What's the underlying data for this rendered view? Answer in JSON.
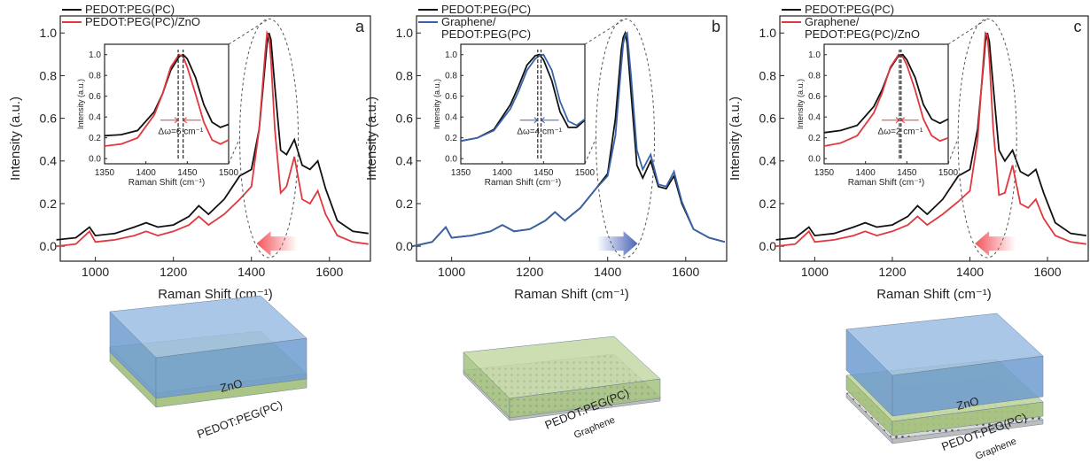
{
  "chart_data": [
    {
      "type": "line",
      "label": "a",
      "xlabel": "Raman Shift (cm⁻¹)",
      "ylabel": "Intensity (a.u.)",
      "x": [
        900,
        950,
        985,
        1000,
        1050,
        1100,
        1130,
        1160,
        1200,
        1240,
        1265,
        1290,
        1330,
        1370,
        1400,
        1420,
        1435,
        1440,
        1445,
        1450,
        1460,
        1475,
        1490,
        1510,
        1530,
        1550,
        1570,
        1590,
        1620,
        1660,
        1700
      ],
      "series": [
        {
          "name": "PEDOT:PEG(PC)",
          "color": "#111111",
          "values": [
            0.03,
            0.04,
            0.09,
            0.05,
            0.06,
            0.09,
            0.11,
            0.09,
            0.1,
            0.14,
            0.19,
            0.15,
            0.22,
            0.33,
            0.36,
            0.55,
            0.85,
            0.95,
            1.0,
            0.97,
            0.75,
            0.45,
            0.43,
            0.5,
            0.38,
            0.36,
            0.4,
            0.27,
            0.12,
            0.07,
            0.06
          ]
        },
        {
          "name": "PEDOT:PEG(PC)/ZnO",
          "color": "#e0383e",
          "values": [
            0.0,
            0.01,
            0.07,
            0.02,
            0.03,
            0.05,
            0.07,
            0.05,
            0.07,
            0.1,
            0.14,
            0.1,
            0.15,
            0.22,
            0.28,
            0.55,
            0.9,
            1.0,
            0.98,
            0.88,
            0.55,
            0.25,
            0.28,
            0.42,
            0.22,
            0.2,
            0.26,
            0.15,
            0.05,
            0.02,
            0.01
          ]
        }
      ],
      "xlim": [
        910,
        1705
      ],
      "xticks": [
        1000,
        1200,
        1400,
        1600
      ],
      "ylim": [
        -0.07,
        1.08
      ],
      "yticks": [
        {
          "value": 0,
          "label": "0.0"
        },
        0.2,
        0.4,
        0.6,
        0.8,
        {
          "value": 1,
          "label": "1.0"
        }
      ],
      "shift_arrow": {
        "direction": "left",
        "color": "#f2545b"
      },
      "inset": {
        "type": "line",
        "xlabel": "Raman Shift (cm⁻¹)",
        "ylabel": "Intensity (a.u.)",
        "x": [
          1350,
          1370,
          1390,
          1410,
          1420,
          1430,
          1440,
          1445,
          1450,
          1460,
          1470,
          1480,
          1490,
          1500
        ],
        "series": [
          {
            "color": "#111111",
            "values": [
              0.22,
              0.23,
              0.27,
              0.45,
              0.62,
              0.85,
              0.98,
              1.0,
              0.96,
              0.78,
              0.52,
              0.35,
              0.3,
              0.33
            ]
          },
          {
            "color": "#e0383e",
            "values": [
              0.12,
              0.14,
              0.2,
              0.42,
              0.62,
              0.88,
              1.0,
              0.98,
              0.88,
              0.62,
              0.35,
              0.18,
              0.14,
              0.18
            ]
          }
        ],
        "xlim": [
          1350,
          1500
        ],
        "xticks": [
          1350,
          1400,
          1450,
          1500
        ],
        "ylim": [
          -0.05,
          1.1
        ],
        "yticks": [
          {
            "value": 0,
            "label": "0.0"
          },
          0.2,
          0.4,
          0.6,
          0.8,
          {
            "value": 1,
            "label": "1.0"
          }
        ],
        "markers": [
          1439,
          1445
        ],
        "annotation": "Δω=6 cm⁻¹"
      }
    },
    {
      "type": "line",
      "label": "b",
      "xlabel": "Raman Shift (cm⁻¹)",
      "ylabel": "Intensity (a.u.)",
      "x": [
        900,
        950,
        985,
        1000,
        1050,
        1100,
        1130,
        1160,
        1200,
        1240,
        1265,
        1290,
        1330,
        1370,
        1400,
        1420,
        1435,
        1440,
        1445,
        1450,
        1460,
        1475,
        1490,
        1510,
        1530,
        1550,
        1570,
        1590,
        1620,
        1660,
        1700
      ],
      "series": [
        {
          "name": "PEDOT:PEG(PC)",
          "color": "#111111",
          "values": [
            0.0,
            0.02,
            0.09,
            0.04,
            0.05,
            0.07,
            0.1,
            0.07,
            0.08,
            0.12,
            0.16,
            0.12,
            0.18,
            0.27,
            0.34,
            0.6,
            0.92,
            0.98,
            1.0,
            0.95,
            0.72,
            0.38,
            0.32,
            0.4,
            0.28,
            0.27,
            0.33,
            0.2,
            0.08,
            0.04,
            0.02
          ]
        },
        {
          "name": "Graphene/\nPEDOT:PEG(PC)",
          "color": "#3a64a8",
          "values": [
            0.0,
            0.02,
            0.09,
            0.04,
            0.05,
            0.07,
            0.1,
            0.07,
            0.08,
            0.12,
            0.16,
            0.12,
            0.18,
            0.27,
            0.33,
            0.52,
            0.85,
            0.95,
            0.99,
            1.0,
            0.8,
            0.45,
            0.36,
            0.43,
            0.29,
            0.28,
            0.35,
            0.21,
            0.08,
            0.04,
            0.02
          ]
        }
      ],
      "xlim": [
        910,
        1705
      ],
      "xticks": [
        1000,
        1200,
        1400,
        1600
      ],
      "ylim": [
        -0.07,
        1.08
      ],
      "yticks": [
        {
          "value": 0,
          "label": "0.0"
        },
        0.2,
        0.4,
        0.6,
        0.8,
        {
          "value": 1,
          "label": "1.0"
        }
      ],
      "shift_arrow": {
        "direction": "right",
        "color": "#4a64b8"
      },
      "inset": {
        "type": "line",
        "xlabel": "Raman Shift (cm⁻¹)",
        "ylabel": "Intensity (a.u.)",
        "x": [
          1350,
          1370,
          1390,
          1410,
          1420,
          1430,
          1440,
          1445,
          1450,
          1460,
          1470,
          1480,
          1490,
          1500
        ],
        "series": [
          {
            "color": "#111111",
            "values": [
              0.17,
              0.2,
              0.28,
              0.52,
              0.7,
              0.9,
              0.99,
              1.0,
              0.95,
              0.75,
              0.45,
              0.3,
              0.3,
              0.37
            ]
          },
          {
            "color": "#3a64a8",
            "values": [
              0.17,
              0.2,
              0.27,
              0.48,
              0.65,
              0.85,
              0.96,
              0.99,
              1.0,
              0.85,
              0.55,
              0.36,
              0.32,
              0.38
            ]
          }
        ],
        "xlim": [
          1350,
          1500
        ],
        "xticks": [
          1350,
          1400,
          1450,
          1500
        ],
        "ylim": [
          -0.05,
          1.1
        ],
        "yticks": [
          {
            "value": 0,
            "label": "0.0"
          },
          0.2,
          0.4,
          0.6,
          0.8,
          {
            "value": 1,
            "label": "1.0"
          }
        ],
        "markers": [
          1443,
          1447
        ],
        "annotation": "Δω=4 cm⁻¹"
      }
    },
    {
      "type": "line",
      "label": "c",
      "xlabel": "Raman Shift (cm⁻¹)",
      "ylabel": "Intensity (a.u.)",
      "x": [
        900,
        950,
        985,
        1000,
        1050,
        1100,
        1130,
        1160,
        1200,
        1240,
        1265,
        1290,
        1330,
        1370,
        1400,
        1420,
        1435,
        1440,
        1445,
        1450,
        1460,
        1475,
        1490,
        1510,
        1530,
        1550,
        1570,
        1590,
        1620,
        1660,
        1700
      ],
      "series": [
        {
          "name": "PEDOT:PEG(PC)",
          "color": "#111111",
          "values": [
            0.03,
            0.04,
            0.09,
            0.05,
            0.06,
            0.09,
            0.11,
            0.09,
            0.1,
            0.14,
            0.19,
            0.15,
            0.22,
            0.33,
            0.36,
            0.55,
            0.85,
            0.96,
            1.0,
            0.96,
            0.75,
            0.45,
            0.4,
            0.45,
            0.35,
            0.33,
            0.36,
            0.25,
            0.11,
            0.06,
            0.05
          ]
        },
        {
          "name": "Graphene/\nPEDOT:PEG(PC)/ZnO",
          "color": "#e0383e",
          "values": [
            0.0,
            0.01,
            0.07,
            0.02,
            0.03,
            0.05,
            0.07,
            0.05,
            0.07,
            0.1,
            0.14,
            0.1,
            0.15,
            0.21,
            0.26,
            0.5,
            0.88,
            1.0,
            0.99,
            0.88,
            0.55,
            0.24,
            0.25,
            0.38,
            0.2,
            0.18,
            0.22,
            0.13,
            0.05,
            0.02,
            0.01
          ]
        }
      ],
      "xlim": [
        910,
        1705
      ],
      "xticks": [
        1000,
        1200,
        1400,
        1600
      ],
      "ylim": [
        -0.07,
        1.08
      ],
      "yticks": [
        {
          "value": 0,
          "label": "0.0"
        },
        0.2,
        0.4,
        0.6,
        0.8,
        {
          "value": 1,
          "label": "1.0"
        }
      ],
      "shift_arrow": {
        "direction": "left",
        "color": "#f2545b"
      },
      "inset": {
        "type": "line",
        "xlabel": "Raman Shift (cm⁻¹)",
        "ylabel": "Intensity (a.u.)",
        "x": [
          1350,
          1370,
          1390,
          1410,
          1420,
          1430,
          1440,
          1445,
          1450,
          1460,
          1470,
          1480,
          1490,
          1500
        ],
        "series": [
          {
            "color": "#111111",
            "values": [
              0.25,
              0.27,
              0.32,
              0.5,
              0.66,
              0.87,
              0.99,
              1.0,
              0.95,
              0.78,
              0.52,
              0.38,
              0.34,
              0.38
            ]
          },
          {
            "color": "#e0383e",
            "values": [
              0.12,
              0.15,
              0.22,
              0.44,
              0.63,
              0.88,
              1.0,
              0.98,
              0.9,
              0.66,
              0.38,
              0.22,
              0.17,
              0.2
            ]
          }
        ],
        "xlim": [
          1350,
          1500
        ],
        "xticks": [
          1350,
          1400,
          1450,
          1500
        ],
        "ylim": [
          -0.05,
          1.1
        ],
        "yticks": [
          {
            "value": 0,
            "label": "0.0"
          },
          0.2,
          0.4,
          0.6,
          0.8,
          {
            "value": 1,
            "label": "1.0"
          }
        ],
        "markers": [
          1441,
          1443
        ],
        "annotation": "Δω=2 cm⁻¹"
      }
    }
  ],
  "diagrams": [
    {
      "labels": [
        "ZnO",
        "PEDOT:PEG(PC)"
      ]
    },
    {
      "labels": [
        "PEDOT:PEG(PC)",
        "Graphene"
      ]
    },
    {
      "labels": [
        "ZnO",
        "PEDOT:PEG(PC)",
        "Graphene"
      ]
    }
  ]
}
